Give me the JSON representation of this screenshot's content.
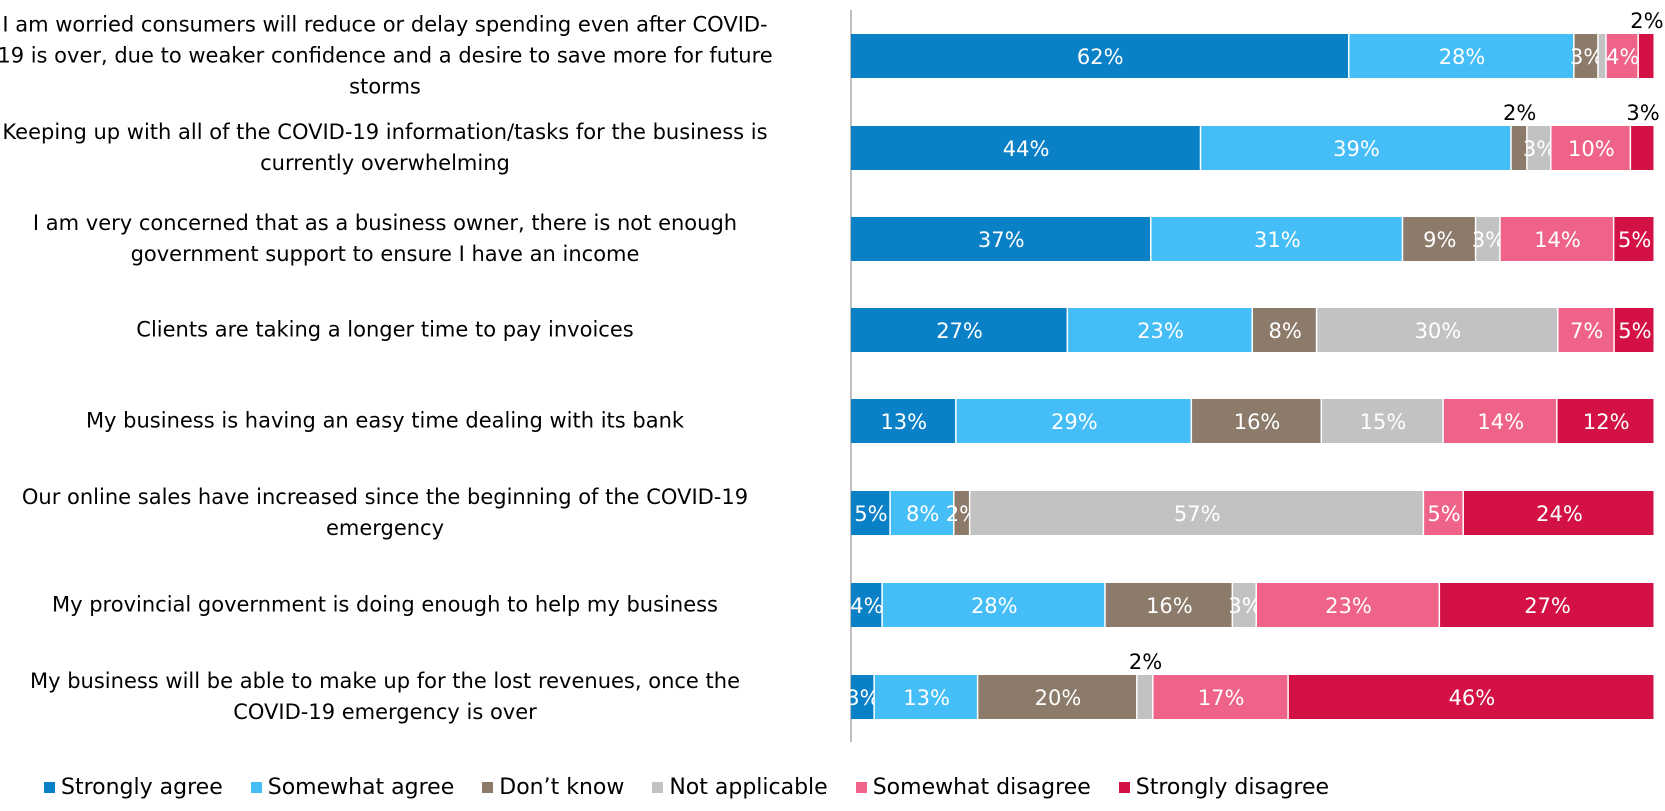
{
  "chart_data": {
    "type": "bar",
    "orientation": "horizontal",
    "stacked": true,
    "percent": true,
    "xlim": [
      0,
      100
    ],
    "grid": false,
    "legend_position": "bottom",
    "categories": [
      "I am worried consumers will reduce or delay spending even after COVID-19 is over, due to weaker confidence and a desire to save more for future storms",
      "Keeping up with all of the COVID-19 information/tasks for the business is currently overwhelming",
      "I am very concerned that as a business owner, there is not enough government support to ensure I have an income",
      "Clients are taking a longer time to pay invoices",
      "My business is having an easy time dealing with its bank",
      "Our online sales have increased since the beginning of the COVID-19 emergency",
      "My provincial government is doing enough to help my business",
      "My business will be able to make up for the lost revenues, once the COVID-19 emergency is over"
    ],
    "series": [
      {
        "name": "Strongly agree",
        "color": "#0a80c6",
        "values": [
          62,
          44,
          37,
          27,
          13,
          5,
          4,
          3
        ]
      },
      {
        "name": "Somewhat agree",
        "color": "#45bdf7",
        "values": [
          28,
          39,
          31,
          23,
          29,
          8,
          28,
          13
        ]
      },
      {
        "name": "Don’t know",
        "color": "#8c7b6b",
        "values": [
          3,
          2,
          9,
          8,
          16,
          2,
          16,
          20
        ]
      },
      {
        "name": "Not applicable",
        "color": "#c2c2c2",
        "values": [
          1,
          3,
          3,
          30,
          15,
          57,
          3,
          2
        ]
      },
      {
        "name": "Somewhat disagree",
        "color": "#f06389",
        "values": [
          4,
          10,
          14,
          7,
          14,
          5,
          23,
          17
        ]
      },
      {
        "name": "Strongly disagree",
        "color": "#d31145",
        "values": [
          2,
          3,
          5,
          5,
          12,
          24,
          27,
          46
        ]
      }
    ],
    "data_labels": [
      [
        "62%",
        "28%",
        "3%",
        "",
        "4%",
        "2%"
      ],
      [
        "44%",
        "39%",
        "2%",
        "3%",
        "10%",
        "3%"
      ],
      [
        "37%",
        "31%",
        "9%",
        "3%",
        "14%",
        "5%"
      ],
      [
        "27%",
        "23%",
        "8%",
        "30%",
        "7%",
        "5%"
      ],
      [
        "13%",
        "29%",
        "16%",
        "15%",
        "14%",
        "12%"
      ],
      [
        "5%",
        "8%",
        "2%",
        "57%",
        "5%",
        "24%"
      ],
      [
        "4%",
        "28%",
        "16%",
        "3%",
        "23%",
        "27%"
      ],
      [
        "3%",
        "13%",
        "20%",
        "2%",
        "17%",
        "46%"
      ]
    ],
    "above_labels": [
      [
        5
      ],
      [
        2,
        5
      ],
      [],
      [],
      [],
      [],
      [],
      [
        3
      ]
    ]
  }
}
